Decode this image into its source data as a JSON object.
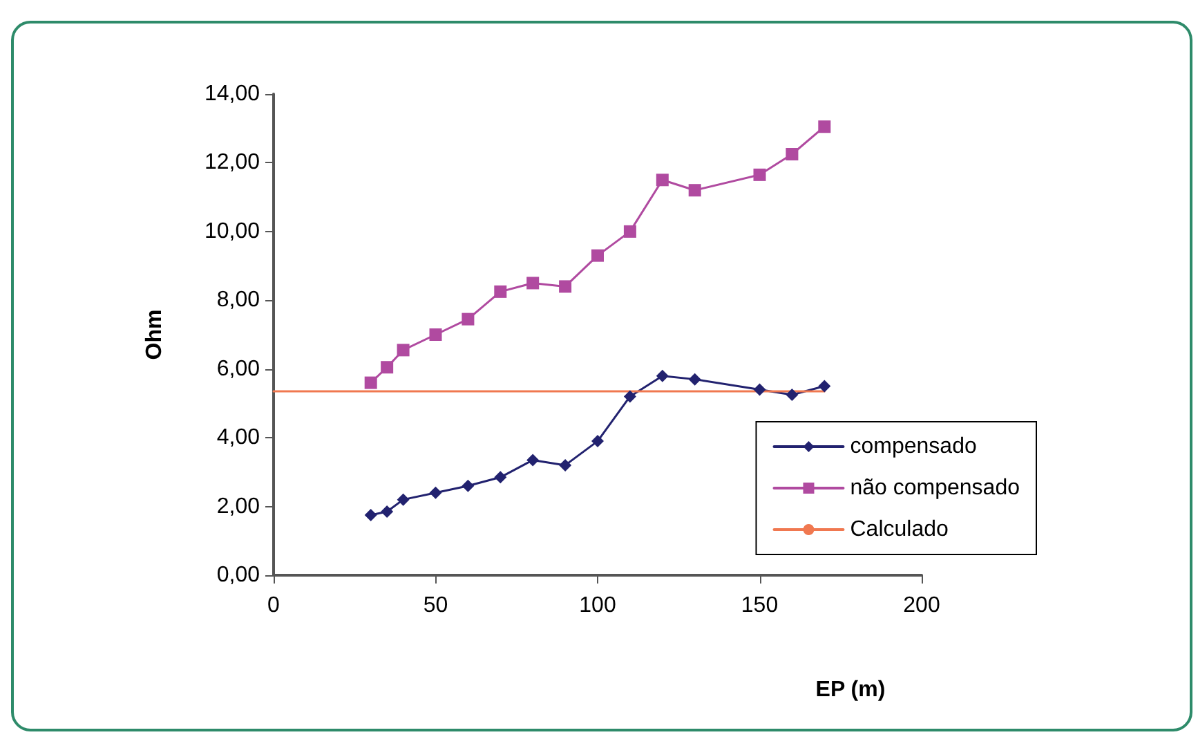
{
  "chart_data": {
    "type": "line",
    "xlabel": "EP (m)",
    "ylabel": "Ohm",
    "xlim": [
      0,
      200
    ],
    "xticks": [
      0,
      50,
      100,
      150,
      200
    ],
    "ylim": [
      0,
      14
    ],
    "yticks": [
      {
        "value": 0,
        "label": "0,00"
      },
      {
        "value": 2,
        "label": "2,00"
      },
      {
        "value": 4,
        "label": "4,00"
      },
      {
        "value": 6,
        "label": "6,00"
      },
      {
        "value": 8,
        "label": "8,00"
      },
      {
        "value": 10,
        "label": "10,00"
      },
      {
        "value": 12,
        "label": "12,00"
      },
      {
        "value": 14,
        "label": "14,00"
      }
    ],
    "grid": false,
    "legend": "bottom right",
    "line_style": "solid",
    "series": [
      {
        "name": "compensado",
        "color": "#22226f",
        "marker": "diamond",
        "x": [
          30,
          35,
          40,
          50,
          60,
          70,
          80,
          90,
          100,
          110,
          120,
          130,
          150,
          160,
          170
        ],
        "values": [
          1.75,
          1.85,
          2.2,
          2.4,
          2.6,
          2.85,
          3.35,
          3.2,
          3.9,
          5.2,
          5.8,
          5.7,
          5.4,
          5.25,
          5.5
        ]
      },
      {
        "name": "não compensado",
        "color": "#b04aa0",
        "marker": "square",
        "x": [
          30,
          35,
          40,
          50,
          60,
          70,
          80,
          90,
          100,
          110,
          120,
          130,
          150,
          160,
          170
        ],
        "values": [
          5.6,
          6.05,
          6.55,
          7.0,
          7.45,
          8.25,
          8.5,
          8.4,
          9.3,
          10.0,
          11.5,
          11.2,
          11.65,
          12.25,
          13.05
        ]
      },
      {
        "name": "Calculado",
        "color": "#f07850",
        "marker": "none",
        "x": [
          0,
          170
        ],
        "values": [
          5.35,
          5.35
        ]
      }
    ]
  }
}
